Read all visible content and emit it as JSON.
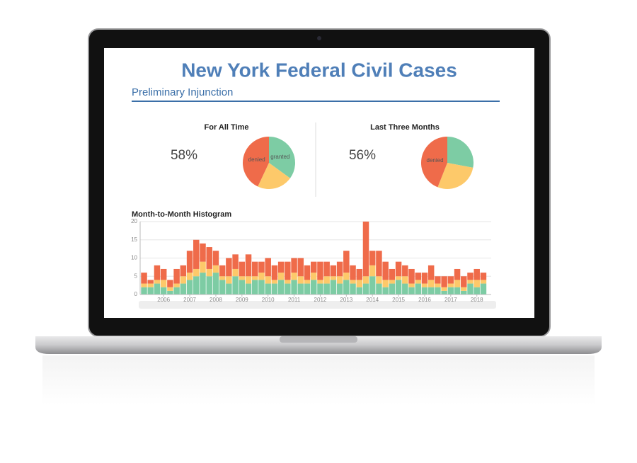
{
  "header": {
    "title": "New York Federal Civil Cases",
    "subtitle": "Preliminary Injunction"
  },
  "chart_data": [
    {
      "type": "pie",
      "title": "For All Time",
      "stat": "58%",
      "categories": [
        "granted",
        null,
        "denied"
      ],
      "values": [
        35,
        22,
        43
      ],
      "colors": [
        "#7dcca4",
        "#fdc96a",
        "#ef6b4a"
      ]
    },
    {
      "type": "pie",
      "title": "Last Three Months",
      "stat": "56%",
      "categories": [
        null,
        null,
        "denied"
      ],
      "values": [
        28,
        28,
        44
      ],
      "colors": [
        "#7dcca4",
        "#fdc96a",
        "#ef6b4a"
      ]
    },
    {
      "type": "bar",
      "title": "Month-to-Month Histogram",
      "stacked": true,
      "grid": true,
      "x": [
        2005.25,
        2005.5,
        2005.75,
        2006,
        2006.25,
        2006.5,
        2006.75,
        2007,
        2007.25,
        2007.5,
        2007.75,
        2008,
        2008.25,
        2008.5,
        2008.75,
        2009,
        2009.25,
        2009.5,
        2009.75,
        2010,
        2010.25,
        2010.5,
        2010.75,
        2011,
        2011.25,
        2011.5,
        2011.75,
        2012,
        2012.25,
        2012.5,
        2012.75,
        2013,
        2013.25,
        2013.5,
        2013.75,
        2014,
        2014.25,
        2014.5,
        2014.75,
        2015,
        2015.25,
        2015.5,
        2015.75,
        2016,
        2016.25,
        2016.5,
        2016.75,
        2017,
        2017.25,
        2017.5,
        2017.75,
        2018,
        2018.25
      ],
      "xlim": [
        2005.1,
        2018.55
      ],
      "xticks": [
        2006,
        2007,
        2008,
        2009,
        2010,
        2011,
        2012,
        2013,
        2014,
        2015,
        2016,
        2017,
        2018
      ],
      "ylim": [
        0,
        20
      ],
      "yticks": [
        0,
        5,
        10,
        15,
        20
      ],
      "series": [
        {
          "color": "#7dcca4",
          "values": [
            2,
            2,
            3,
            2,
            1,
            2,
            3,
            4,
            5,
            6,
            5,
            6,
            4,
            3,
            5,
            4,
            3,
            4,
            4,
            3,
            3,
            4,
            3,
            4,
            3,
            3,
            4,
            3,
            3,
            4,
            3,
            4,
            3,
            2,
            3,
            5,
            3,
            2,
            3,
            4,
            3,
            2,
            3,
            2,
            2,
            2,
            1,
            2,
            2,
            1,
            3,
            2,
            3
          ]
        },
        {
          "color": "#fdc96a",
          "values": [
            1,
            1,
            1,
            2,
            1,
            1,
            2,
            2,
            2,
            3,
            2,
            2,
            1,
            2,
            2,
            1,
            2,
            1,
            2,
            2,
            1,
            2,
            1,
            2,
            2,
            1,
            2,
            1,
            2,
            1,
            2,
            2,
            1,
            2,
            2,
            3,
            2,
            2,
            1,
            1,
            2,
            1,
            1,
            1,
            2,
            1,
            1,
            1,
            2,
            1,
            1,
            2,
            1
          ]
        },
        {
          "color": "#ef6b4a",
          "values": [
            3,
            1,
            4,
            3,
            2,
            4,
            3,
            6,
            8,
            5,
            6,
            4,
            3,
            5,
            4,
            4,
            6,
            4,
            3,
            5,
            4,
            3,
            5,
            4,
            5,
            4,
            3,
            5,
            4,
            3,
            4,
            6,
            4,
            3,
            15,
            4,
            7,
            5,
            3,
            4,
            3,
            4,
            2,
            3,
            4,
            2,
            3,
            2,
            3,
            3,
            2,
            3,
            2
          ]
        }
      ]
    }
  ]
}
